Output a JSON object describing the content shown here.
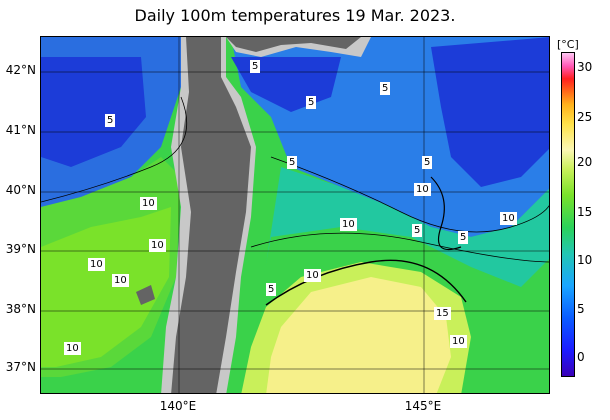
{
  "title": "Daily 100m temperatures 19 Mar. 2023.",
  "unit": "[°C]",
  "lat_labels": [
    "42°N",
    "41°N",
    "40°N",
    "39°N",
    "38°N",
    "37°N"
  ],
  "lon_labels": [
    "140°E",
    "145°E"
  ],
  "colorbar_ticks": [
    "30",
    "25",
    "20",
    "15",
    "10",
    "5",
    "0"
  ],
  "contour_labels": [
    "5",
    "5",
    "5",
    "5",
    "5",
    "5",
    "5",
    "10",
    "10",
    "10",
    "10",
    "10",
    "10",
    "10",
    "10",
    "5",
    "5",
    "10",
    "15",
    "10",
    "15",
    "10"
  ],
  "colors": {
    "land": "#646464",
    "shelf": "#c8c8c8",
    "deep_blue": "#1c3cd8",
    "mid_blue": "#2a7ee8",
    "cyan_green": "#22c8a0",
    "green": "#3ad24a",
    "lime": "#7ae22a",
    "yellow": "#f6f08a"
  }
}
